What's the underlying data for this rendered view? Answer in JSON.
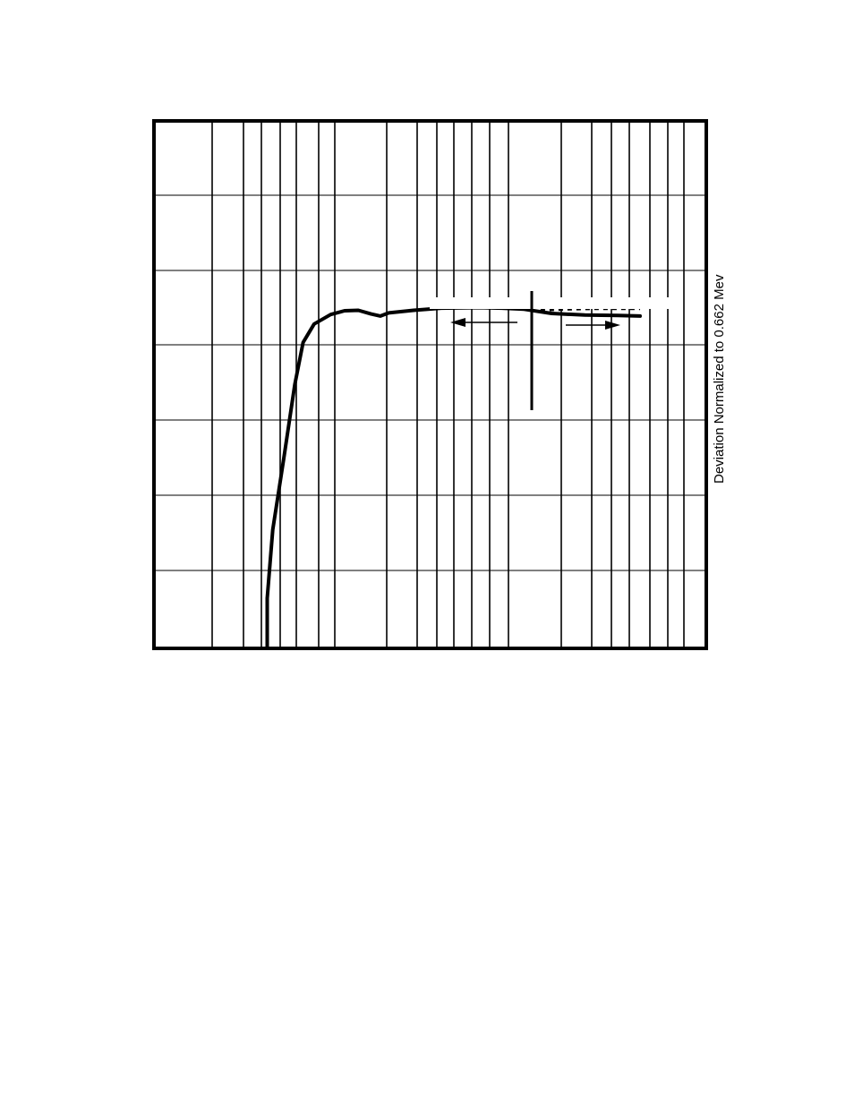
{
  "chart_data": {
    "type": "line",
    "orientation": "rotated-90-clockwise",
    "x_scale": "log",
    "x_major_boundaries_fraction": [
      0.0,
      0.33,
      0.66,
      1.0
    ],
    "y_gridlines": 6,
    "grid": true,
    "ylabel": "Deviation Normalized to 0.662 Mev",
    "series": [
      {
        "style": "solid",
        "points_fraction": [
          [
            0.205,
            0.0
          ],
          [
            0.205,
            0.095
          ],
          [
            0.215,
            0.225
          ],
          [
            0.235,
            0.36
          ],
          [
            0.255,
            0.5
          ],
          [
            0.27,
            0.58
          ],
          [
            0.29,
            0.615
          ],
          [
            0.32,
            0.633
          ],
          [
            0.345,
            0.64
          ],
          [
            0.37,
            0.641
          ],
          [
            0.393,
            0.634
          ],
          [
            0.41,
            0.63
          ],
          [
            0.425,
            0.636
          ],
          [
            0.47,
            0.641
          ],
          [
            0.52,
            0.645
          ],
          [
            0.59,
            0.646
          ],
          [
            0.63,
            0.645
          ],
          [
            0.67,
            0.643
          ],
          [
            0.72,
            0.635
          ],
          [
            0.78,
            0.632
          ],
          [
            0.84,
            0.631
          ],
          [
            0.88,
            0.63
          ]
        ]
      },
      {
        "style": "dashed",
        "points_fraction": [
          [
            0.7,
            0.641
          ],
          [
            0.75,
            0.643
          ],
          [
            0.8,
            0.644
          ],
          [
            0.88,
            0.644
          ]
        ]
      }
    ],
    "annotations": [
      {
        "type": "divider",
        "at_x_fraction": 0.7
      },
      {
        "type": "arrow",
        "direction": "decreasing-x"
      },
      {
        "type": "arrow",
        "direction": "increasing-x"
      }
    ]
  }
}
